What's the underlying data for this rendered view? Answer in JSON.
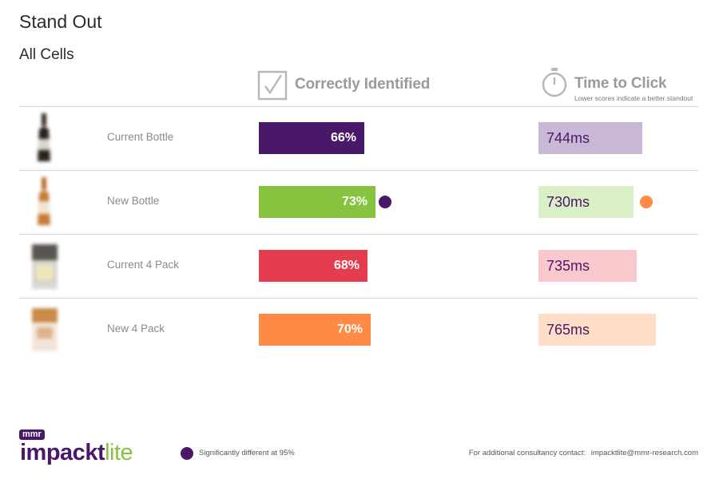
{
  "page": {
    "title": "Stand Out",
    "subtitle": "All Cells"
  },
  "columns": {
    "correct": {
      "label": "Correctly Identified",
      "icon": "checkbox-icon"
    },
    "time": {
      "label": "Time to Click",
      "note": "Lower scores indicate a better standout",
      "icon": "stopwatch-icon"
    }
  },
  "chart_data": {
    "type": "bar",
    "categories": [
      "Current Bottle",
      "New Bottle",
      "Current 4 Pack",
      "New 4 Pack"
    ],
    "series": [
      {
        "name": "Correctly Identified",
        "values": [
          66,
          73,
          68,
          70
        ],
        "labels": [
          "66%",
          "73%",
          "68%",
          "70%"
        ],
        "colors": [
          "#4a1869",
          "#86c440",
          "#e43d50",
          "#ff8a45"
        ],
        "significant": [
          false,
          true,
          false,
          false
        ]
      },
      {
        "name": "Time to Click",
        "values": [
          744,
          730,
          735,
          765
        ],
        "labels": [
          "744ms",
          "730ms",
          "735ms",
          "765ms"
        ],
        "colors": [
          "#c9b7d6",
          "#d9f0c6",
          "#f8c8cc",
          "#ffddc7"
        ],
        "significant": [
          false,
          true,
          false,
          false
        ]
      }
    ],
    "significance_colors": {
      "correct": "#4a1869",
      "time": "#ff8a45"
    }
  },
  "footer": {
    "logo_small": "mmr",
    "logo_part1": "impackt",
    "logo_part2": "lite",
    "logo_color1": "#4a1869",
    "logo_color2": "#86c440",
    "legend_text": "Significantly different at 95%",
    "legend_color": "#4a1869",
    "contact_label": "For additional consultancy contact:",
    "contact_email": "impacktlite@mmr-research.com"
  }
}
